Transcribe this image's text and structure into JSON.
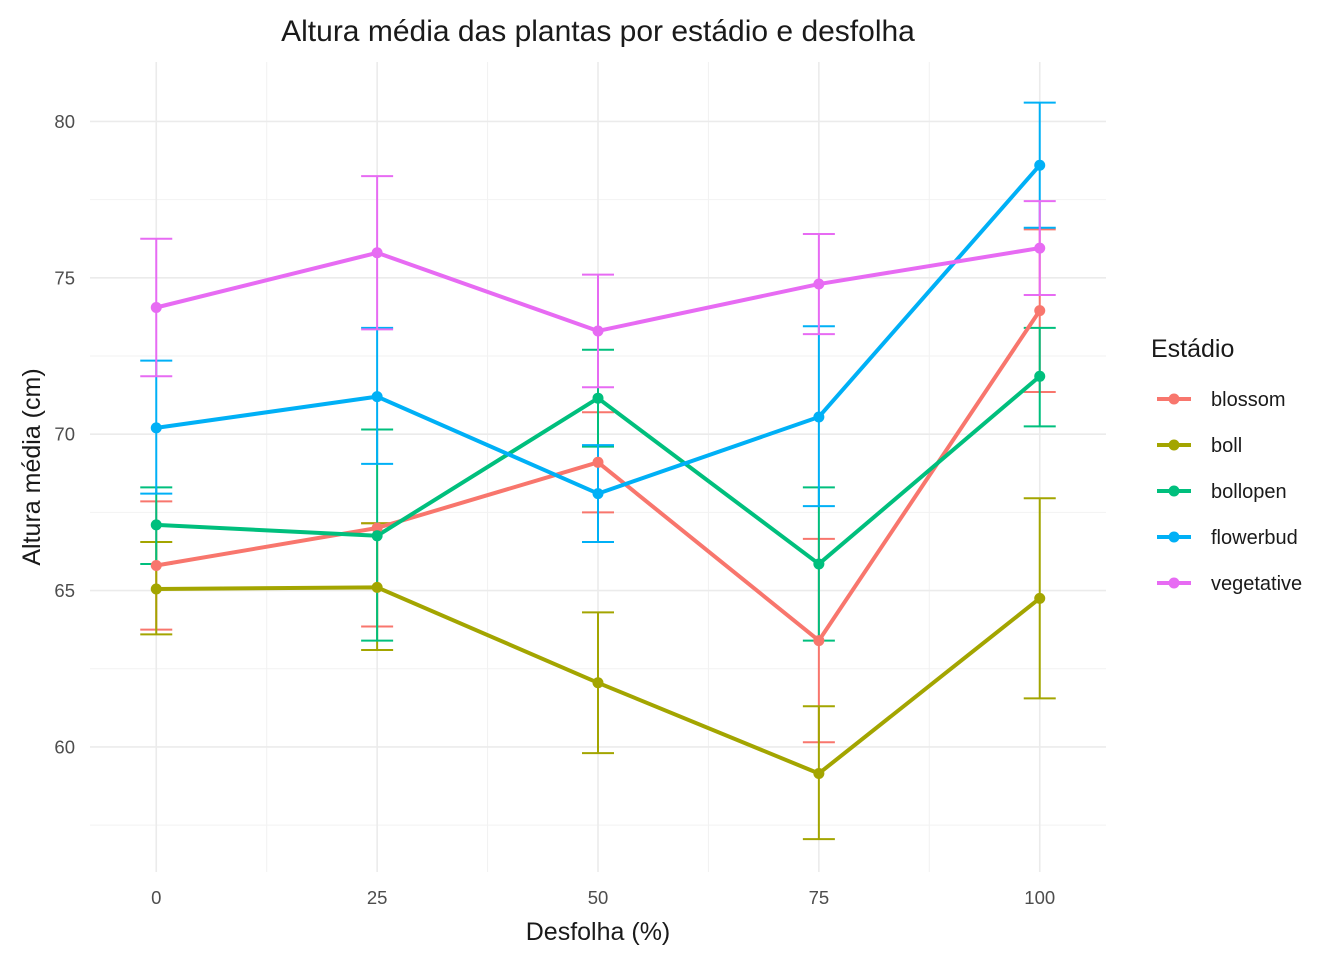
{
  "chart_data": {
    "type": "line",
    "title": "Altura média das plantas por estádio e desfolha",
    "xlabel": "Desfolha (%)",
    "ylabel": "Altura média (cm)",
    "x": [
      0,
      25,
      50,
      75,
      100
    ],
    "x_ticks": [
      "0",
      "25",
      "50",
      "75",
      "100"
    ],
    "y_ticks": [
      "60",
      "65",
      "70",
      "75",
      "80"
    ],
    "xlim": [
      -7.5,
      107.5
    ],
    "ylim": [
      56.0,
      81.9
    ],
    "grid": true,
    "legend": {
      "title": "Estádio",
      "position": "right"
    },
    "series": [
      {
        "name": "blossom",
        "color": "#F8766D",
        "values": [
          65.8,
          67.0,
          69.1,
          63.4,
          73.95
        ],
        "lower": [
          63.75,
          63.85,
          67.5,
          60.15,
          71.35
        ],
        "upper": [
          67.85,
          67.15,
          70.7,
          66.65,
          76.55
        ]
      },
      {
        "name": "boll",
        "color": "#A3A500",
        "values": [
          65.05,
          65.1,
          62.05,
          59.15,
          64.75
        ],
        "lower": [
          63.6,
          63.1,
          59.8,
          57.05,
          61.55
        ],
        "upper": [
          66.55,
          67.15,
          64.3,
          61.3,
          67.95
        ]
      },
      {
        "name": "bollopen",
        "color": "#00BF7D",
        "values": [
          67.1,
          66.75,
          71.15,
          65.85,
          71.85
        ],
        "lower": [
          65.85,
          63.4,
          69.6,
          63.4,
          70.25
        ],
        "upper": [
          68.3,
          70.15,
          72.7,
          68.3,
          73.4
        ]
      },
      {
        "name": "flowerbud",
        "color": "#00B0F6",
        "values": [
          70.2,
          71.2,
          68.1,
          70.55,
          78.6
        ],
        "lower": [
          68.1,
          69.05,
          66.55,
          67.7,
          76.6
        ],
        "upper": [
          72.35,
          73.4,
          69.65,
          73.45,
          80.6
        ]
      },
      {
        "name": "vegetative",
        "color": "#E76BF3",
        "values": [
          74.05,
          75.8,
          73.3,
          74.8,
          75.95
        ],
        "lower": [
          71.85,
          73.35,
          71.5,
          73.2,
          74.45
        ],
        "upper": [
          76.25,
          78.25,
          75.1,
          76.4,
          77.45
        ]
      }
    ]
  }
}
